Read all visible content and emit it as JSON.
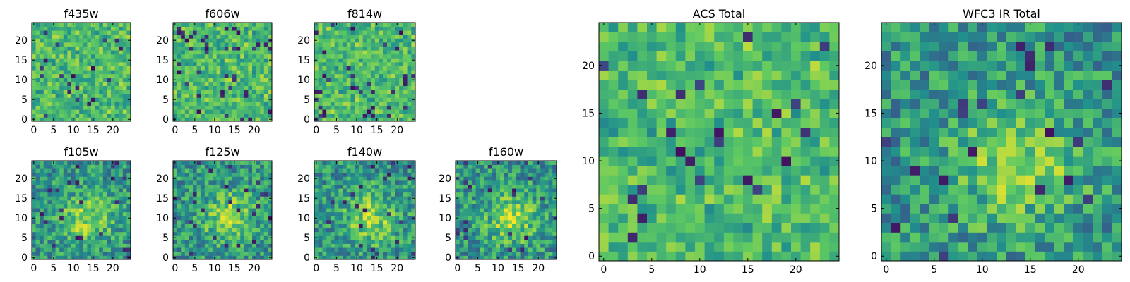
{
  "figure": {
    "background": "#ffffff",
    "colormap": [
      "#440154",
      "#3b528b",
      "#21918c",
      "#5ec962",
      "#fde725"
    ]
  },
  "chart_data": [
    {
      "type": "heatmap",
      "title": "f435w",
      "grid_size": 25,
      "xlim": [
        0,
        24
      ],
      "ylim": [
        0,
        24
      ],
      "x_ticks": [
        0,
        5,
        10,
        15,
        20
      ],
      "y_ticks": [
        0,
        5,
        10,
        15,
        20
      ],
      "pattern": "uniform noise",
      "seed": 11
    },
    {
      "type": "heatmap",
      "title": "f606w",
      "grid_size": 25,
      "xlim": [
        0,
        24
      ],
      "ylim": [
        0,
        24
      ],
      "x_ticks": [
        0,
        5,
        10,
        15,
        20
      ],
      "y_ticks": [
        0,
        5,
        10,
        15,
        20
      ],
      "pattern": "uniform noise",
      "seed": 23
    },
    {
      "type": "heatmap",
      "title": "f814w",
      "grid_size": 25,
      "xlim": [
        0,
        24
      ],
      "ylim": [
        0,
        24
      ],
      "x_ticks": [
        0,
        5,
        10,
        15,
        20
      ],
      "y_ticks": [
        0,
        5,
        10,
        15,
        20
      ],
      "pattern": "uniform noise",
      "seed": 37
    },
    {
      "type": "heatmap",
      "title": "f105w",
      "grid_size": 25,
      "xlim": [
        0,
        24
      ],
      "ylim": [
        0,
        24
      ],
      "x_ticks": [
        0,
        5,
        10,
        15,
        20
      ],
      "y_ticks": [
        0,
        5,
        10,
        15,
        20
      ],
      "pattern": "central source",
      "seed": 41
    },
    {
      "type": "heatmap",
      "title": "f125w",
      "grid_size": 25,
      "xlim": [
        0,
        24
      ],
      "ylim": [
        0,
        24
      ],
      "x_ticks": [
        0,
        5,
        10,
        15,
        20
      ],
      "y_ticks": [
        0,
        5,
        10,
        15,
        20
      ],
      "pattern": "central source",
      "seed": 53
    },
    {
      "type": "heatmap",
      "title": "f140w",
      "grid_size": 25,
      "xlim": [
        0,
        24
      ],
      "ylim": [
        0,
        24
      ],
      "x_ticks": [
        0,
        5,
        10,
        15,
        20
      ],
      "y_ticks": [
        0,
        5,
        10,
        15,
        20
      ],
      "pattern": "central source",
      "seed": 67
    },
    {
      "type": "heatmap",
      "title": "f160w",
      "grid_size": 25,
      "xlim": [
        0,
        24
      ],
      "ylim": [
        0,
        24
      ],
      "x_ticks": [
        0,
        5,
        10,
        15,
        20
      ],
      "y_ticks": [
        0,
        5,
        10,
        15,
        20
      ],
      "pattern": "central source",
      "seed": 79
    },
    {
      "type": "heatmap",
      "title": "ACS Total",
      "grid_size": 25,
      "xlim": [
        0,
        24
      ],
      "ylim": [
        0,
        24
      ],
      "x_ticks": [
        0,
        5,
        10,
        15,
        20
      ],
      "y_ticks": [
        0,
        5,
        10,
        15,
        20
      ],
      "pattern": "uniform noise",
      "seed": 83
    },
    {
      "type": "heatmap",
      "title": "WFC3 IR Total",
      "grid_size": 25,
      "xlim": [
        0,
        24
      ],
      "ylim": [
        0,
        24
      ],
      "x_ticks": [
        0,
        5,
        10,
        15,
        20
      ],
      "y_ticks": [
        0,
        5,
        10,
        15,
        20
      ],
      "pattern": "central source",
      "seed": 97
    }
  ]
}
